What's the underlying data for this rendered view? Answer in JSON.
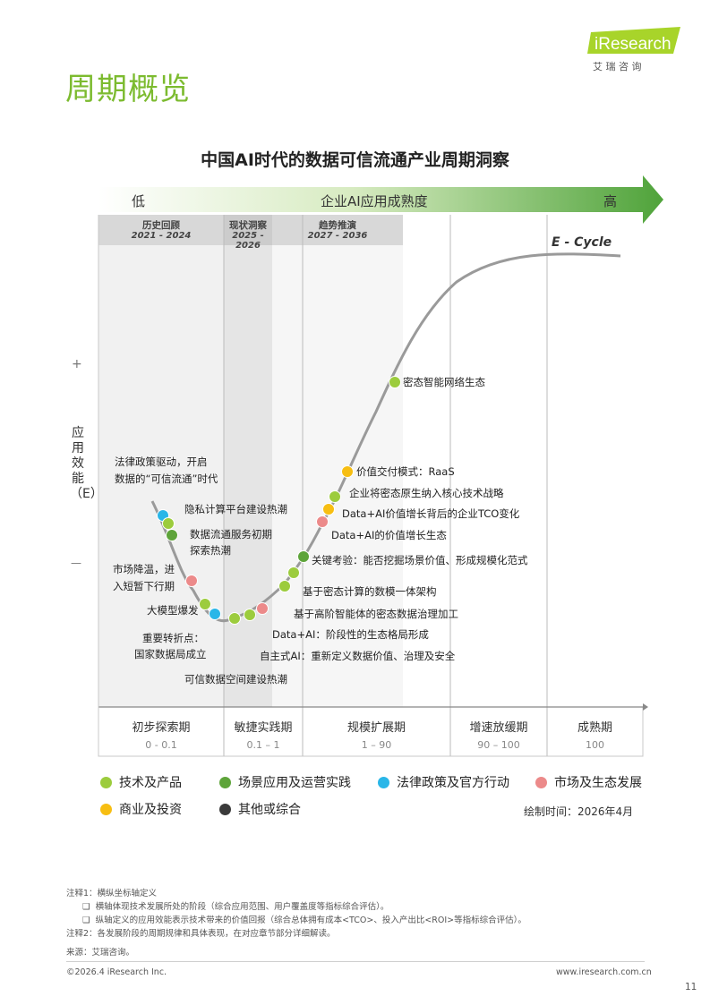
{
  "header": {
    "title": "周期概览",
    "logo_text": "iResearch",
    "logo_sub": "艾 瑞 咨 询",
    "brand_color": "#7cbb2f"
  },
  "chart_data": {
    "type": "line",
    "title": "中国AI时代的数据可信流通产业周期洞察",
    "top_arrow": {
      "left": "低",
      "center": "企业AI应用成熟度",
      "right": "高"
    },
    "ylabel": "应用效能（E）",
    "y_plus": "+",
    "y_minus": "—",
    "curve_label": "E - Cycle",
    "periods": [
      {
        "name": "历史回顾",
        "years": "2021 - 2024"
      },
      {
        "name": "现状洞察",
        "years": "2025 - 2026"
      },
      {
        "name": "趋势推演",
        "years": "2027 - 2036"
      }
    ],
    "phases": [
      {
        "name": "初步探索期",
        "range": "0 - 0.1"
      },
      {
        "name": "敏捷实践期",
        "range": "0.1 – 1"
      },
      {
        "name": "规模扩展期",
        "range": "1 – 90"
      },
      {
        "name": "增速放缓期",
        "range": "90 – 100"
      },
      {
        "name": "成熟期",
        "range": "100"
      }
    ],
    "categories": [
      {
        "key": "tech",
        "name": "技术及产品",
        "color": "#9ccc3d"
      },
      {
        "key": "scene",
        "name": "场景应用及运营实践",
        "color": "#5ea43a"
      },
      {
        "key": "law",
        "name": "法律政策及官方行动",
        "color": "#29b6e8"
      },
      {
        "key": "market",
        "name": "市场及生态发展",
        "color": "#ec8a8a"
      },
      {
        "key": "biz",
        "name": "商业及投资",
        "color": "#f7be12"
      },
      {
        "key": "other",
        "name": "其他或综合",
        "color": "#3a3a3a"
      }
    ],
    "events": [
      {
        "text": "法律政策驱动，开启\n数据的“可信流通”时代",
        "category": "law"
      },
      {
        "text": "隐私计算平台建设热潮",
        "category": "tech"
      },
      {
        "text": "数据流通服务初期\n探索热潮",
        "category": "scene"
      },
      {
        "text": "市场降温，进\n入短暂下行期",
        "category": "market"
      },
      {
        "text": "大模型爆发",
        "category": "tech"
      },
      {
        "text": "重要转折点：\n国家数据局成立",
        "category": "law"
      },
      {
        "text": "可信数据空间建设热潮",
        "category": "tech"
      },
      {
        "text": "自主式AI：重新定义数据价值、治理及安全",
        "category": "tech"
      },
      {
        "text": "Data+AI：阶段性的生态格局形成",
        "category": "market"
      },
      {
        "text": "基于高阶智能体的密态数据治理加工",
        "category": "tech"
      },
      {
        "text": "基于密态计算的数模一体架构",
        "category": "tech"
      },
      {
        "text": "关键考验：能否挖掘场景价值、形成规模化范式",
        "category": "scene"
      },
      {
        "text": "Data+AI的价值增长生态",
        "category": "market"
      },
      {
        "text": "Data+AI价值增长背后的企业TCO变化",
        "category": "biz"
      },
      {
        "text": "企业将密态原生纳入核心技术战略",
        "category": "tech"
      },
      {
        "text": "价值交付模式：RaaS",
        "category": "biz"
      },
      {
        "text": "密态智能网络生态",
        "category": "tech"
      }
    ],
    "draw_time": "绘制时间：2026年4月"
  },
  "notes": {
    "note1_title": "注释1：横纵坐标轴定义",
    "note1_a": "横轴体现技术发展所处的阶段（综合应用范围、用户覆盖度等指标综合评估）。",
    "note1_b": "纵轴定义的应用效能表示技术带来的价值回报（综合总体拥有成本<TCO>、投入产出比<ROI>等指标综合评估）。",
    "note2": "注释2：各发展阶段的周期规律和具体表现，在对应章节部分详细解读。",
    "source": "来源：艾瑞咨询。"
  },
  "footer": {
    "copyright": "©2026.4 iResearch Inc.",
    "url": "www.iresearch.com.cn",
    "page_number": "11"
  }
}
